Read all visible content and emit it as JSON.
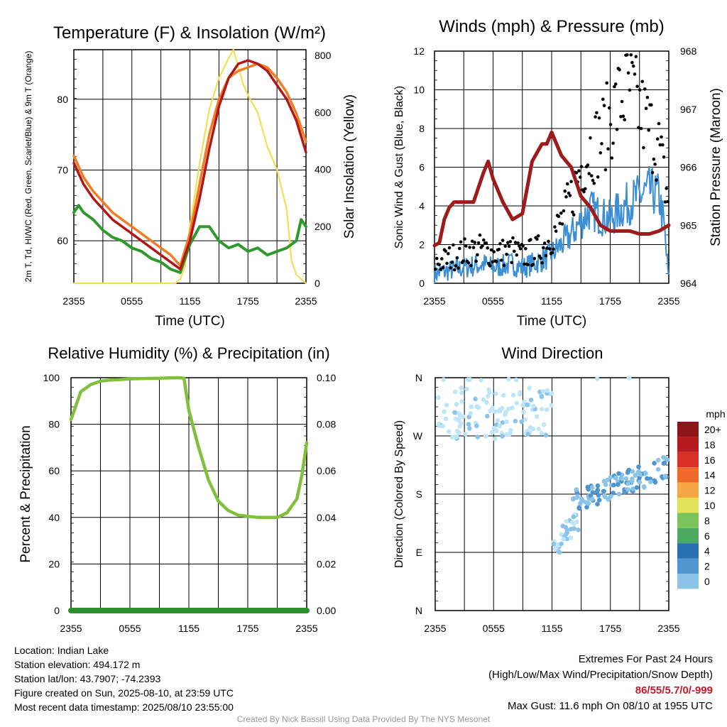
{
  "colors": {
    "red": "#c81e1e",
    "green": "#2e9a2e",
    "scarlet": "#b01818",
    "blue": "#3c8fd4",
    "orange": "#f07d23",
    "yellow": "#f2df55",
    "maroon": "#9d1b1b",
    "black": "#000000",
    "rh": "#82bf3c",
    "precip": "#2e8f2e",
    "extremes": "#c8192a"
  },
  "chart_data": [
    {
      "id": "temperature",
      "type": "line",
      "title": "Temperature (F) & Insolation (W/m²)",
      "xlabel": "Time (UTC)",
      "ylabel": "2m T, Td, HI/WC (Red, Green, Scarlet/Blue) & 9m T (Orange)",
      "y2label": "Solar Insolation (Yellow)",
      "x_ticks": [
        "2355",
        "0555",
        "1155",
        "1755",
        "2355"
      ],
      "x_range_hours": [
        0,
        24
      ],
      "ylim": [
        54,
        87
      ],
      "y_ticks": [
        60,
        70,
        80
      ],
      "y2lim": [
        0,
        820
      ],
      "y2_ticks": [
        0,
        200,
        400,
        600,
        800
      ],
      "series": [
        {
          "name": "2m T",
          "axis": "y",
          "color": "red",
          "x": [
            0,
            1,
            2,
            3,
            4,
            5,
            6,
            7,
            8,
            9,
            10,
            11,
            12,
            13,
            14,
            15,
            16,
            17,
            18,
            19,
            20,
            21,
            22,
            23,
            24
          ],
          "values": [
            71,
            68,
            66,
            64.5,
            63,
            62,
            61,
            60,
            59,
            58,
            57,
            56,
            60,
            66,
            73,
            79,
            83,
            85,
            85.5,
            85,
            84,
            82,
            80,
            77,
            72.5
          ]
        },
        {
          "name": "Td",
          "axis": "y",
          "color": "green",
          "x": [
            0,
            0.5,
            1,
            2,
            3,
            4,
            5,
            6,
            7,
            8,
            9,
            10,
            11,
            12,
            13,
            14,
            15,
            16,
            17,
            18,
            19,
            20,
            21,
            22,
            23,
            23.5,
            24
          ],
          "values": [
            64,
            65,
            64,
            63,
            61.5,
            60.5,
            60,
            59,
            58.5,
            57.5,
            57,
            56,
            55.5,
            59.5,
            62,
            62,
            60,
            59,
            59.5,
            58.5,
            59,
            58,
            58.5,
            59,
            60,
            63,
            62
          ]
        },
        {
          "name": "HI/WC",
          "axis": "y",
          "color": "scarlet",
          "x": [
            0,
            1,
            2,
            3,
            4,
            5,
            6,
            7,
            8,
            9,
            10,
            11,
            12,
            13,
            14,
            15,
            16,
            17,
            18,
            19,
            20,
            21,
            22,
            23,
            24
          ],
          "values": [
            71,
            68,
            66,
            64.5,
            63,
            62,
            61,
            60,
            59,
            58,
            57,
            56,
            60,
            66,
            73,
            79,
            83,
            85,
            85.5,
            85,
            84,
            82,
            80,
            77,
            72.5
          ]
        },
        {
          "name": "9m T",
          "axis": "y",
          "color": "orange",
          "x": [
            0,
            1,
            2,
            3,
            4,
            5,
            6,
            7,
            8,
            9,
            10,
            11,
            12,
            13,
            14,
            15,
            16,
            17,
            18,
            19,
            20,
            21,
            22,
            23,
            24
          ],
          "values": [
            72,
            69,
            67,
            65.5,
            64,
            63,
            62,
            61,
            60,
            59,
            58,
            56.5,
            61,
            68,
            75,
            80,
            83,
            84,
            84.5,
            85,
            84.5,
            83,
            81,
            78,
            74
          ]
        },
        {
          "name": "Solar Insolation",
          "axis": "y2",
          "color": "yellow",
          "x": [
            0,
            10.5,
            11,
            11.5,
            12,
            13,
            14,
            15,
            16,
            16.5,
            17,
            17.5,
            18,
            19,
            20,
            21,
            22,
            22.5,
            23,
            24
          ],
          "values": [
            0,
            0,
            15,
            60,
            200,
            420,
            610,
            720,
            790,
            820,
            760,
            700,
            660,
            600,
            480,
            400,
            260,
            80,
            30,
            0
          ]
        }
      ]
    },
    {
      "id": "winds",
      "type": "line",
      "title": "Winds (mph) & Pressure (mb)",
      "xlabel": "Time (UTC)",
      "ylabel": "Sonic Wind & Gust (Blue, Black)",
      "y2label": "Station Pressure (Maroon)",
      "x_ticks": [
        "2355",
        "0555",
        "1155",
        "1755",
        "2355"
      ],
      "x_range_hours": [
        0,
        24
      ],
      "ylim": [
        0,
        12
      ],
      "y_ticks": [
        0,
        2,
        4,
        6,
        8,
        10,
        12
      ],
      "y2lim": [
        964,
        968
      ],
      "y2_ticks": [
        964,
        965,
        966,
        967,
        968
      ],
      "series": [
        {
          "name": "Sonic Wind",
          "axis": "y",
          "color": "blue",
          "x": [
            0,
            1,
            2,
            3,
            4,
            5,
            6,
            7,
            8,
            9,
            10,
            11,
            12,
            13,
            14,
            15,
            16,
            17,
            18,
            19,
            20,
            21,
            22,
            23,
            23.5,
            24
          ],
          "values": [
            0.5,
            0.6,
            0.7,
            0.8,
            0.9,
            1.0,
            0.8,
            0.9,
            1.0,
            0.8,
            1.0,
            1.2,
            1.5,
            2.0,
            2.5,
            3.2,
            3.8,
            3.5,
            3.3,
            3.8,
            4.2,
            4.5,
            4.8,
            4.5,
            3.0,
            0.1
          ]
        },
        {
          "name": "Gust",
          "axis": "y",
          "color": "black",
          "x": [
            0,
            1,
            2,
            3,
            4,
            5,
            6,
            7,
            8,
            9,
            10,
            11,
            12,
            13,
            14,
            15,
            16,
            17,
            18,
            19,
            20,
            21,
            22,
            23,
            24
          ],
          "values": [
            1.0,
            1.2,
            1.4,
            1.6,
            1.7,
            1.8,
            1.5,
            1.6,
            1.7,
            1.4,
            1.6,
            1.8,
            2.4,
            3.2,
            4.4,
            6.0,
            7.0,
            7.5,
            8.5,
            9.5,
            10.0,
            9.0,
            8.0,
            7.0,
            4.0
          ]
        },
        {
          "name": "Station Pressure",
          "axis": "y2",
          "color": "maroon",
          "x": [
            0,
            0.5,
            1,
            1.5,
            2,
            3,
            4,
            5,
            5.5,
            6,
            7,
            8,
            9,
            10,
            11,
            11.5,
            12,
            13,
            13.5,
            14,
            15,
            16,
            17,
            18,
            19,
            20,
            21,
            22,
            23,
            24
          ],
          "values": [
            964.65,
            964.7,
            965.1,
            965.3,
            965.4,
            965.4,
            965.4,
            965.9,
            966.1,
            965.8,
            965.4,
            965.1,
            965.2,
            966.1,
            966.4,
            966.4,
            966.6,
            966.2,
            966.1,
            966.0,
            965.5,
            965.3,
            965.0,
            964.9,
            964.9,
            964.9,
            964.85,
            964.85,
            964.9,
            965.0
          ]
        }
      ]
    },
    {
      "id": "humidity",
      "type": "line",
      "title": "Relative Humidity (%) & Precipitation (in)",
      "ylabel": "Percent & Precipitation",
      "x_ticks": [
        "2355",
        "0555",
        "1155",
        "1755",
        "2355"
      ],
      "x_range_hours": [
        0,
        24
      ],
      "ylim": [
        0,
        100
      ],
      "y_ticks": [
        0,
        20,
        40,
        60,
        80,
        100
      ],
      "y2lim": [
        0,
        0.1
      ],
      "y2_ticks": [
        "0.00",
        "0.02",
        "0.04",
        "0.06",
        "0.08",
        "0.10"
      ],
      "series": [
        {
          "name": "Relative Humidity",
          "axis": "y",
          "color": "rh",
          "x": [
            0,
            0.5,
            1,
            2,
            3,
            4,
            5,
            6,
            7,
            8,
            9,
            10,
            11,
            11.5,
            12,
            13,
            14,
            15,
            16,
            17,
            18,
            19,
            20,
            21,
            22,
            23,
            23.5,
            24
          ],
          "values": [
            82,
            88,
            94,
            97,
            98.5,
            99,
            99.2,
            99.5,
            99.6,
            99.7,
            99.8,
            99.9,
            100,
            99.8,
            86,
            70,
            56,
            47,
            43,
            41,
            40.5,
            40,
            40,
            40,
            42,
            48,
            58,
            72
          ]
        },
        {
          "name": "Precipitation",
          "axis": "y2",
          "color": "precip",
          "x": [
            0,
            24
          ],
          "values": [
            0,
            0
          ]
        }
      ]
    },
    {
      "id": "wind_direction",
      "type": "scatter",
      "title": "Wind Direction",
      "ylabel": "Direction (Colored By Speed)",
      "x_ticks": [
        "2355",
        "0555",
        "1155",
        "1755",
        "2355"
      ],
      "x_range_hours": [
        0,
        24
      ],
      "y_ticks": [
        "N",
        "E",
        "S",
        "W",
        "N"
      ],
      "ylim_degrees": [
        0,
        360
      ],
      "legend": {
        "unit": "mph",
        "labels": [
          "20+",
          "18",
          "16",
          "14",
          "12",
          "10",
          "8",
          "6",
          "4",
          "2",
          "0"
        ]
      },
      "speed_colors": [
        "#bfe6f7",
        "#8cc4e8",
        "#4f95cf",
        "#2a6fb0",
        "#4aa860",
        "#7cc35a",
        "#e3e05a",
        "#f6a645",
        "#ef6a2c",
        "#d93026",
        "#b51c22",
        "#8b1519"
      ],
      "clusters": [
        {
          "x_range": [
            0.3,
            12
          ],
          "dir_range": [
            265,
            345
          ],
          "speed_range": [
            0,
            2.5
          ],
          "count": 120
        },
        {
          "x_range": [
            12,
            15
          ],
          "dir_range": [
            70,
            170
          ],
          "speed_range": [
            1,
            3.5
          ],
          "count": 35
        },
        {
          "x_range": [
            14,
            24
          ],
          "dir_range": [
            150,
            240
          ],
          "speed_range": [
            2.5,
            5.5
          ],
          "count": 110
        },
        {
          "x_range": [
            0,
            24
          ],
          "dir_range": [
            355,
            360
          ],
          "speed_range": [
            0,
            1
          ],
          "count": 8
        }
      ]
    }
  ],
  "footer": {
    "location": "Location: Indian Lake",
    "elevation": "Station elevation: 494.172 m",
    "latlon": "Station lat/lon: 43.7907; -74.2393",
    "created": "Figure created on Sun, 2025-08-10, at 23:59 UTC",
    "recent": "Most recent data timestamp: 2025/08/10 23:55:00",
    "extremes_title": "Extremes For Past 24 Hours",
    "extremes_subtitle": "(High/Low/Max Wind/Precipitation/Snow Depth)",
    "extremes_values": "86/55/5.7/0/-999",
    "max_gust": "Max Gust: 11.6 mph On 08/10 at 1955 UTC",
    "credit": "Created By Nick Bassill Using Data Provided By The NYS Mesonet"
  }
}
